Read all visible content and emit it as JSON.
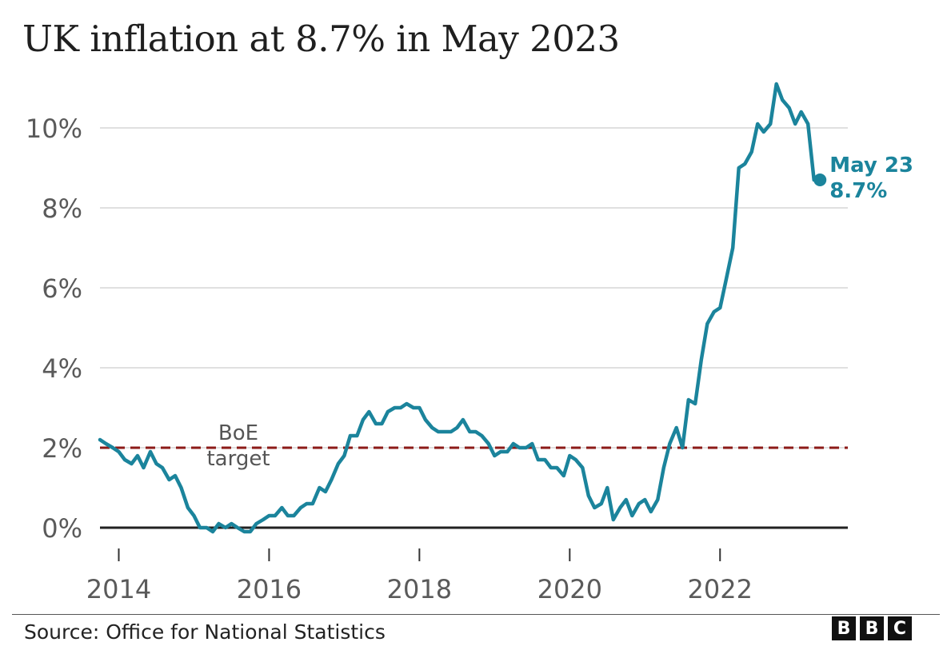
{
  "title": "UK inflation at 8.7% in May 2023",
  "source": "Source: Office for National Statistics",
  "logo": [
    "B",
    "B",
    "C"
  ],
  "chart_data": {
    "type": "line",
    "title": "UK inflation at 8.7% in May 2023",
    "xlabel": "",
    "ylabel": "",
    "ylim": [
      0,
      11.2
    ],
    "xlim": [
      2013.75,
      2023.7
    ],
    "y_ticks": [
      0,
      2,
      4,
      6,
      8,
      10
    ],
    "y_tick_labels": [
      "0%",
      "2%",
      "4%",
      "6%",
      "8%",
      "10%"
    ],
    "x_ticks": [
      2014,
      2016,
      2018,
      2020,
      2022
    ],
    "x_tick_labels": [
      "2014",
      "2016",
      "2018",
      "2020",
      "2022"
    ],
    "grid": true,
    "colors": {
      "series": "#1b849c",
      "target": "#8c1b18",
      "zero": "#222222",
      "grid": "#d6d6d6"
    },
    "series": [
      {
        "name": "",
        "x": [
          2013.75,
          2013.83,
          2013.92,
          2014.0,
          2014.08,
          2014.17,
          2014.25,
          2014.33,
          2014.42,
          2014.5,
          2014.58,
          2014.67,
          2014.75,
          2014.83,
          2014.92,
          2015.0,
          2015.08,
          2015.17,
          2015.25,
          2015.33,
          2015.42,
          2015.5,
          2015.58,
          2015.67,
          2015.75,
          2015.83,
          2015.92,
          2016.0,
          2016.08,
          2016.17,
          2016.25,
          2016.33,
          2016.42,
          2016.5,
          2016.58,
          2016.67,
          2016.75,
          2016.83,
          2016.92,
          2017.0,
          2017.08,
          2017.17,
          2017.25,
          2017.33,
          2017.42,
          2017.5,
          2017.58,
          2017.67,
          2017.75,
          2017.83,
          2017.92,
          2018.0,
          2018.08,
          2018.17,
          2018.25,
          2018.33,
          2018.42,
          2018.5,
          2018.58,
          2018.67,
          2018.75,
          2018.83,
          2018.92,
          2019.0,
          2019.08,
          2019.17,
          2019.25,
          2019.33,
          2019.42,
          2019.5,
          2019.58,
          2019.67,
          2019.75,
          2019.83,
          2019.92,
          2020.0,
          2020.08,
          2020.17,
          2020.25,
          2020.33,
          2020.42,
          2020.5,
          2020.58,
          2020.67,
          2020.75,
          2020.83,
          2020.92,
          2021.0,
          2021.08,
          2021.17,
          2021.25,
          2021.33,
          2021.42,
          2021.5,
          2021.58,
          2021.67,
          2021.75,
          2021.83,
          2021.92,
          2022.0,
          2022.08,
          2022.17,
          2022.25,
          2022.33,
          2022.42,
          2022.5,
          2022.58,
          2022.67,
          2022.75,
          2022.83,
          2022.92,
          2023.0,
          2023.08,
          2023.17,
          2023.25,
          2023.33
        ],
        "values": [
          2.2,
          2.1,
          2.0,
          1.9,
          1.7,
          1.6,
          1.8,
          1.5,
          1.9,
          1.6,
          1.5,
          1.2,
          1.3,
          1.0,
          0.5,
          0.3,
          0.0,
          0.0,
          -0.1,
          0.1,
          0.0,
          0.1,
          0.0,
          -0.1,
          -0.1,
          0.1,
          0.2,
          0.3,
          0.3,
          0.5,
          0.3,
          0.3,
          0.5,
          0.6,
          0.6,
          1.0,
          0.9,
          1.2,
          1.6,
          1.8,
          2.3,
          2.3,
          2.7,
          2.9,
          2.6,
          2.6,
          2.9,
          3.0,
          3.0,
          3.1,
          3.0,
          3.0,
          2.7,
          2.5,
          2.4,
          2.4,
          2.4,
          2.5,
          2.7,
          2.4,
          2.4,
          2.3,
          2.1,
          1.8,
          1.9,
          1.9,
          2.1,
          2.0,
          2.0,
          2.1,
          1.7,
          1.7,
          1.5,
          1.5,
          1.3,
          1.8,
          1.7,
          1.5,
          0.8,
          0.5,
          0.6,
          1.0,
          0.2,
          0.5,
          0.7,
          0.3,
          0.6,
          0.7,
          0.4,
          0.7,
          1.5,
          2.1,
          2.5,
          2.0,
          3.2,
          3.1,
          4.2,
          5.1,
          5.4,
          5.5,
          6.2,
          7.0,
          9.0,
          9.1,
          9.4,
          10.1,
          9.9,
          10.1,
          11.1,
          10.7,
          10.5,
          10.1,
          10.4,
          10.1,
          8.7,
          8.7
        ]
      },
      {
        "name": "BoE target",
        "x": [
          2013.75,
          2023.7
        ],
        "values": [
          2.0,
          2.0
        ]
      }
    ],
    "annotations": {
      "target_label_line1": "BoE",
      "target_label_line2": "target",
      "end_label_line1": "May 23",
      "end_label_line2": "8.7%"
    }
  }
}
